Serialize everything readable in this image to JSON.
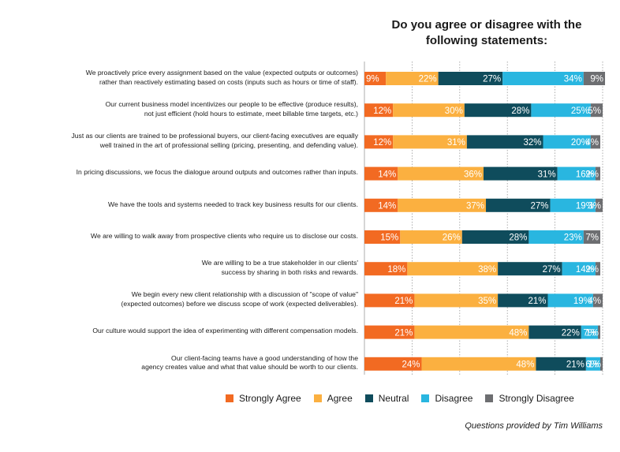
{
  "chart_data": {
    "type": "bar",
    "orientation": "horizontal-stacked-100",
    "title": "Do you agree or disagree with the following statements:",
    "categories": [
      "We proactively price every assignment based on the value (expected outputs or outcomes)\nrather than reactively estimating based on costs (inputs such as hours or time of staff).",
      "Our current business model incentivizes our people to be effective (produce results),\nnot just efficient (hold hours to estimate, meet billable time targets, etc.)",
      "Just as our clients are trained to be professional buyers, our client-facing executives are equally\nwell trained in the art of professional selling (pricing, presenting, and defending value).",
      "In pricing discussions, we focus the dialogue around outputs and outcomes rather than inputs.",
      "We have the tools and systems needed to track key business results for our clients.",
      "We are willing to walk away from prospective clients who require us to disclose our costs.",
      "We are willing to be a true stakeholder in our clients'\nsuccess by sharing in both risks and rewards.",
      "We begin every new client relationship with a discussion of \"scope of value\"\n(expected outcomes) before we discuss scope of work (expected deliverables).",
      "Our culture would support the idea of experimenting with different compensation models.",
      "Our client-facing teams have a good understanding of how the\nagency creates value and what that value should be worth to our clients."
    ],
    "series": [
      {
        "name": "Strongly Agree",
        "color": "#f26a22",
        "values": [
          9,
          12,
          12,
          14,
          14,
          15,
          18,
          21,
          21,
          24
        ]
      },
      {
        "name": "Agree",
        "color": "#fbb040",
        "values": [
          22,
          30,
          31,
          36,
          37,
          26,
          38,
          35,
          48,
          48
        ]
      },
      {
        "name": "Neutral",
        "color": "#0f4c5c",
        "values": [
          27,
          28,
          32,
          31,
          27,
          28,
          27,
          21,
          22,
          21
        ]
      },
      {
        "name": "Disagree",
        "color": "#29b6e0",
        "values": [
          34,
          25,
          20,
          16,
          19,
          23,
          14,
          19,
          7,
          6
        ]
      },
      {
        "name": "Strongly Disagree",
        "color": "#6d6e71",
        "values": [
          9,
          5,
          4,
          2,
          3,
          7,
          2,
          4,
          1,
          1
        ]
      }
    ],
    "xlim": [
      0,
      100
    ],
    "grid": true,
    "legend": "bottom",
    "value_suffix": "%"
  },
  "source": "Questions provided by Tim Williams"
}
